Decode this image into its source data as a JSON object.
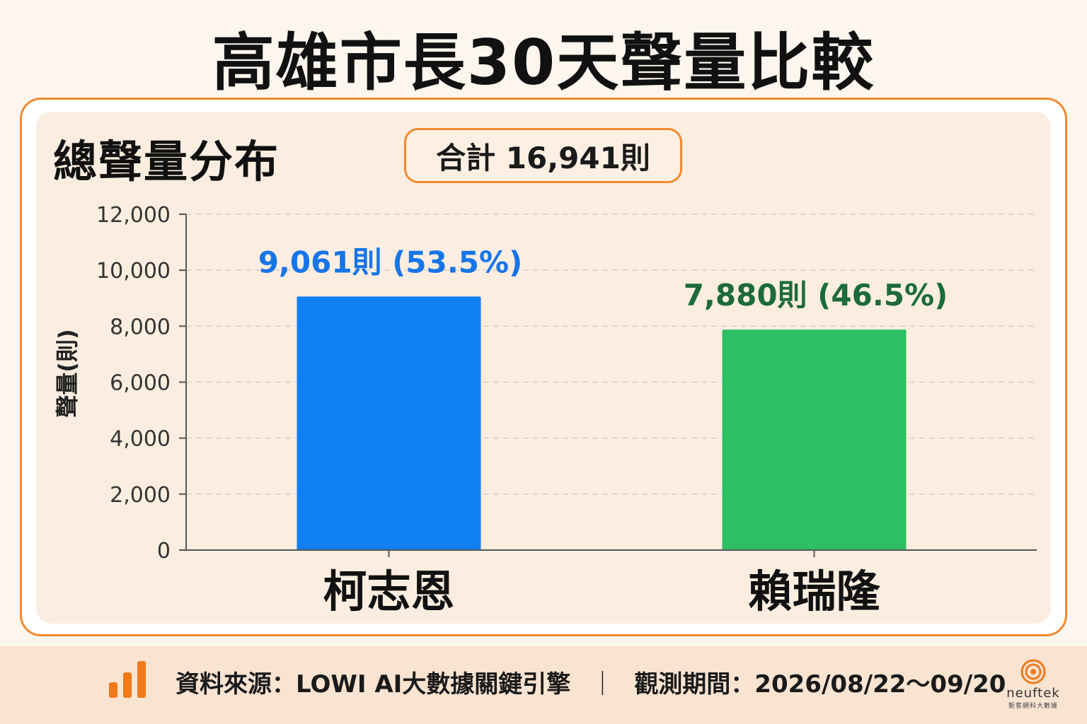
{
  "title": "高雄市長30天聲量比較",
  "section_title": "總聲量分布",
  "total_badge": "合計 16,941則",
  "chart_data": {
    "type": "bar",
    "categories": [
      "柯志恩",
      "賴瑞隆"
    ],
    "values": [
      9061,
      7880
    ],
    "data_labels": [
      "9,061則 (53.5%)",
      "7,880則 (46.5%)"
    ],
    "colors": [
      "#1180f5",
      "#2dc062"
    ],
    "label_colors": [
      "#1675e8",
      "#1c6b3a"
    ],
    "ylabel": "聲量(則)",
    "ylim": [
      0,
      12000
    ],
    "yticks": [
      0,
      2000,
      4000,
      6000,
      8000,
      10000,
      12000
    ],
    "ytick_labels": [
      "0",
      "2,000",
      "4,000",
      "6,000",
      "8,000",
      "10,000",
      "12,000"
    ],
    "grid": true
  },
  "footer": {
    "source": "資料來源：LOWI AI大數據關鍵引擎",
    "separator": "｜",
    "period": "觀測期間：2026/08/22～09/20",
    "icon": "bar-chart-icon",
    "accent": "#f07a1a"
  },
  "logo": {
    "name": "neuftek",
    "sub": "鉅客網科大數據"
  }
}
